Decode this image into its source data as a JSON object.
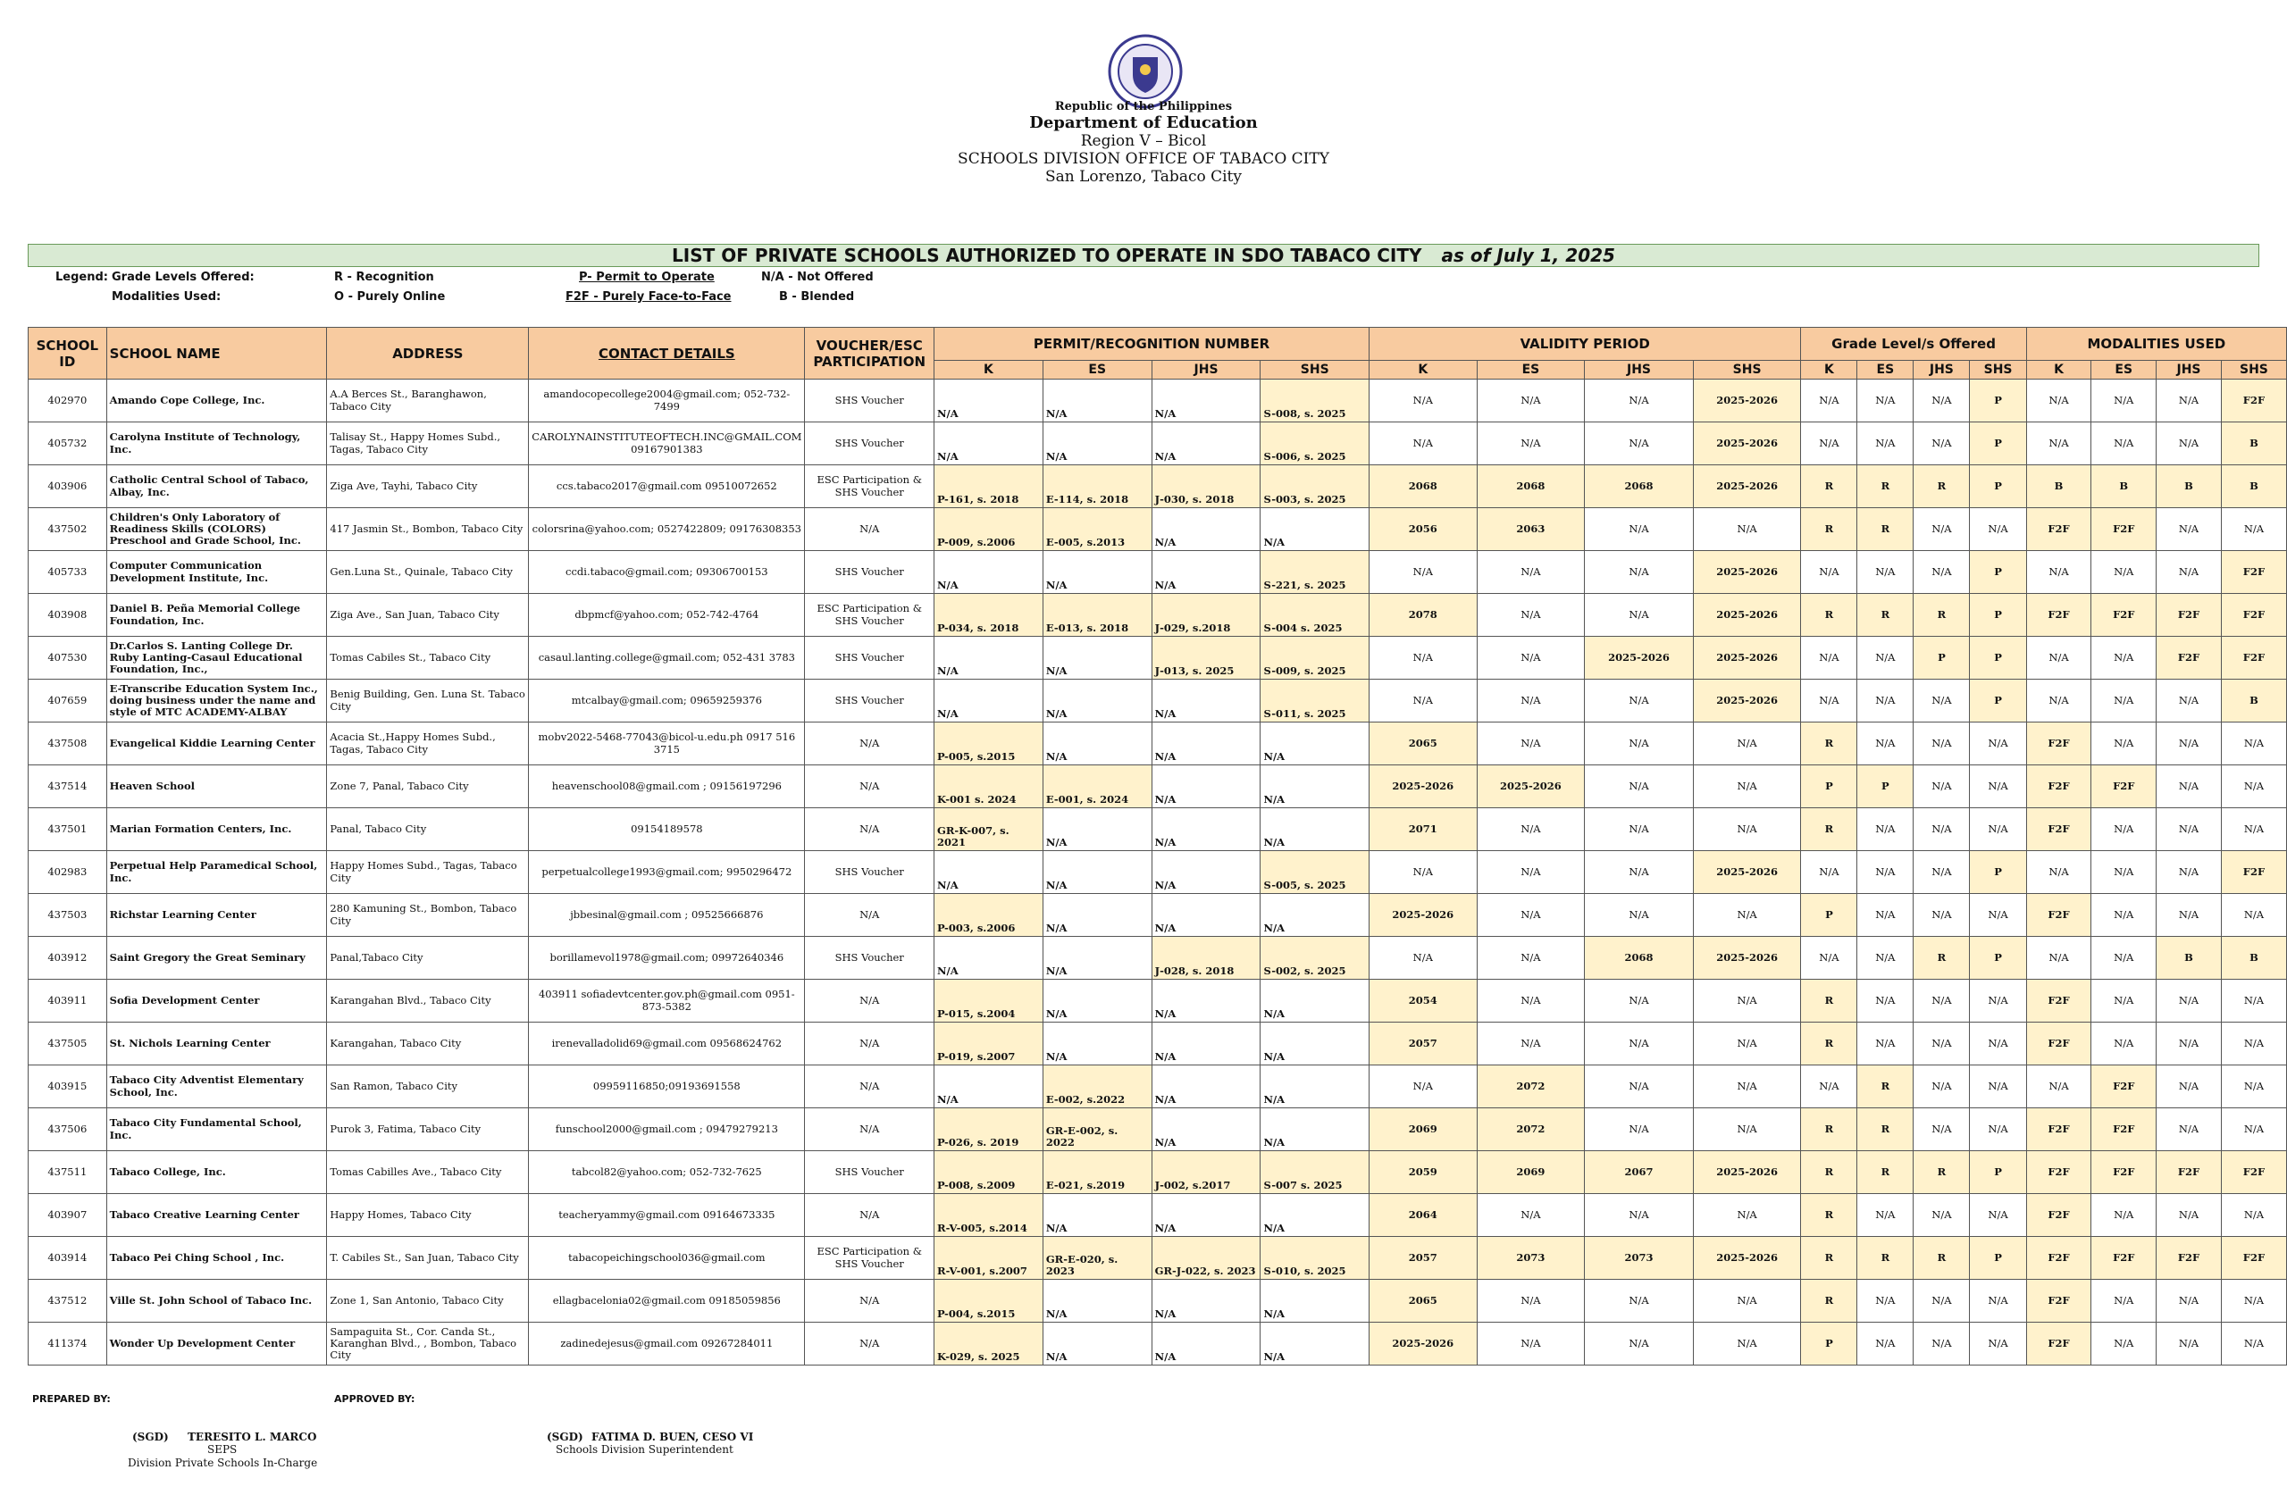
{
  "header": {
    "republic": "Republic of the Philippines",
    "department": "Department of Education",
    "region": "Region V – Bicol",
    "division": "SCHOOLS DIVISION OFFICE OF TABACO CITY",
    "address": "San Lorenzo, Tabaco City"
  },
  "title": {
    "main": "LIST OF PRIVATE SCHOOLS AUTHORIZED TO OPERATE IN SDO TABACO CITY",
    "date": "as of July 1, 2025"
  },
  "legend": {
    "label": "Legend:",
    "grade_label": "Grade Levels Offered:",
    "modality_label": "Modalities Used:",
    "items": [
      [
        "R - Recognition",
        "P- Permit to Operate",
        "N/A - Not Offered"
      ],
      [
        "O - Purely Online",
        "F2F - Purely Face-to-Face",
        "B - Blended"
      ]
    ]
  },
  "table": {
    "headers": [
      "SCHOOL ID",
      "SCHOOL NAME",
      "ADDRESS",
      "CONTACT DETAILS",
      "VOUCHER/ESC PARTICIPATION"
    ],
    "groups": [
      "PERMIT/RECOGNITION NUMBER",
      "VALIDITY PERIOD",
      "Grade Level/s Offered",
      "MODALITIES USED"
    ],
    "sub_headers": [
      "K",
      "ES",
      "JHS",
      "SHS"
    ],
    "rows": [
      [
        "402970",
        "Amando Cope College, Inc.",
        "A.A Berces St., Baranghawon, Tabaco City",
        "amandocopecollege2004@gmail.com; 052-732-7499",
        "SHS Voucher",
        "N/A",
        "N/A",
        "N/A",
        "S-008, s. 2025",
        "N/A",
        "N/A",
        "N/A",
        "2025-2026",
        "N/A",
        "N/A",
        "N/A",
        "P",
        "N/A",
        "N/A",
        "N/A",
        "F2F"
      ],
      [
        "405732",
        "Carolyna Institute of Technology, Inc.",
        "Talisay St., Happy Homes Subd., Tagas, Tabaco City",
        "CAROLYNAINSTITUTEOFTECH.INC@GMAIL.COM 09167901383",
        "SHS Voucher",
        "N/A",
        "N/A",
        "N/A",
        "S-006, s. 2025",
        "N/A",
        "N/A",
        "N/A",
        "2025-2026",
        "N/A",
        "N/A",
        "N/A",
        "P",
        "N/A",
        "N/A",
        "N/A",
        "B"
      ],
      [
        "403906",
        "Catholic Central School of Tabaco, Albay, Inc.",
        "Ziga Ave, Tayhi, Tabaco City",
        "ccs.tabaco2017@gmail.com 09510072652",
        "ESC Participation & SHS Voucher",
        "P-161, s. 2018",
        "E-114, s. 2018",
        "J-030, s. 2018",
        "S-003, s. 2025",
        "2068",
        "2068",
        "2068",
        "2025-2026",
        "R",
        "R",
        "R",
        "P",
        "B",
        "B",
        "B",
        "B"
      ],
      [
        "437502",
        "Children's Only Laboratory of Readiness Skills (COLORS) Preschool and Grade School, Inc.",
        "417 Jasmin St., Bombon, Tabaco City",
        "colorsrina@yahoo.com; 0527422809; 09176308353",
        "N/A",
        "P-009, s.2006",
        "E-005, s.2013",
        "N/A",
        "N/A",
        "2056",
        "2063",
        "N/A",
        "N/A",
        "R",
        "R",
        "N/A",
        "N/A",
        "F2F",
        "F2F",
        "N/A",
        "N/A"
      ],
      [
        "405733",
        "Computer Communication Development Institute, Inc.",
        "Gen.Luna St., Quinale, Tabaco City",
        "ccdi.tabaco@gmail.com; 09306700153",
        "SHS Voucher",
        "N/A",
        "N/A",
        "N/A",
        "S-221, s. 2025",
        "N/A",
        "N/A",
        "N/A",
        "2025-2026",
        "N/A",
        "N/A",
        "N/A",
        "P",
        "N/A",
        "N/A",
        "N/A",
        "F2F"
      ],
      [
        "403908",
        "Daniel B. Peña Memorial College Foundation, Inc.",
        "Ziga Ave., San Juan, Tabaco City",
        "dbpmcf@yahoo.com; 052-742-4764",
        "ESC Participation & SHS Voucher",
        "P-034, s. 2018",
        "E-013, s. 2018",
        "J-029, s.2018",
        "S-004 s. 2025",
        "2078",
        "N/A",
        "N/A",
        "2025-2026",
        "R",
        "R",
        "R",
        "P",
        "F2F",
        "F2F",
        "F2F",
        "F2F"
      ],
      [
        "407530",
        "Dr.Carlos S. Lanting College Dr. Ruby Lanting-Casaul Educational Foundation, Inc.,",
        "Tomas Cabiles St., Tabaco City",
        "casaul.lanting.college@gmail.com; 052-431 3783",
        "SHS Voucher",
        "N/A",
        "N/A",
        "J-013, s. 2025",
        "S-009, s. 2025",
        "N/A",
        "N/A",
        "2025-2026",
        "2025-2026",
        "N/A",
        "N/A",
        "P",
        "P",
        "N/A",
        "N/A",
        "F2F",
        "F2F"
      ],
      [
        "407659",
        "E-Transcribe Education System Inc., doing business under the name and style of MTC ACADEMY-ALBAY",
        "Benig Building, Gen. Luna St. Tabaco City",
        "mtcalbay@gmail.com; 09659259376",
        "SHS Voucher",
        "N/A",
        "N/A",
        "N/A",
        "S-011, s. 2025",
        "N/A",
        "N/A",
        "N/A",
        "2025-2026",
        "N/A",
        "N/A",
        "N/A",
        "P",
        "N/A",
        "N/A",
        "N/A",
        "B"
      ],
      [
        "437508",
        "Evangelical Kiddie Learning Center",
        "Acacia St.,Happy Homes Subd., Tagas, Tabaco City",
        "mobv2022-5468-77043@bicol-u.edu.ph 0917 516 3715",
        "N/A",
        "P-005, s.2015",
        "N/A",
        "N/A",
        "N/A",
        "2065",
        "N/A",
        "N/A",
        "N/A",
        "R",
        "N/A",
        "N/A",
        "N/A",
        "F2F",
        "N/A",
        "N/A",
        "N/A"
      ],
      [
        "437514",
        "Heaven School",
        "Zone 7, Panal, Tabaco City",
        "heavenschool08@gmail.com ; 09156197296",
        "N/A",
        "K-001 s. 2024",
        "E-001, s. 2024",
        "N/A",
        "N/A",
        "2025-2026",
        "2025-2026",
        "N/A",
        "N/A",
        "P",
        "P",
        "N/A",
        "N/A",
        "F2F",
        "F2F",
        "N/A",
        "N/A"
      ],
      [
        "437501",
        "Marian Formation Centers, Inc.",
        "Panal, Tabaco City",
        "09154189578",
        "N/A",
        "GR-K-007, s. 2021",
        "N/A",
        "N/A",
        "N/A",
        "2071",
        "N/A",
        "N/A",
        "N/A",
        "R",
        "N/A",
        "N/A",
        "N/A",
        "F2F",
        "N/A",
        "N/A",
        "N/A"
      ],
      [
        "402983",
        "Perpetual Help Paramedical School, Inc.",
        "Happy Homes Subd., Tagas, Tabaco City",
        "perpetualcollege1993@gmail.com; 9950296472",
        "SHS Voucher",
        "N/A",
        "N/A",
        "N/A",
        "S-005, s. 2025",
        "N/A",
        "N/A",
        "N/A",
        "2025-2026",
        "N/A",
        "N/A",
        "N/A",
        "P",
        "N/A",
        "N/A",
        "N/A",
        "F2F"
      ],
      [
        "437503",
        "Richstar Learning Center",
        "280 Kamuning St., Bombon, Tabaco City",
        "jbbesinal@gmail.com ; 09525666876",
        "N/A",
        "P-003, s.2006",
        "N/A",
        "N/A",
        "N/A",
        "2025-2026",
        "N/A",
        "N/A",
        "N/A",
        "P",
        "N/A",
        "N/A",
        "N/A",
        "F2F",
        "N/A",
        "N/A",
        "N/A"
      ],
      [
        "403912",
        "Saint Gregory the Great Seminary",
        "Panal,Tabaco City",
        "borillamevol1978@gmail.com; 09972640346",
        "SHS Voucher",
        "N/A",
        "N/A",
        "J-028, s. 2018",
        "S-002, s. 2025",
        "N/A",
        "N/A",
        "2068",
        "2025-2026",
        "N/A",
        "N/A",
        "R",
        "P",
        "N/A",
        "N/A",
        "B",
        "B"
      ],
      [
        "403911",
        "Sofia Development Center",
        "Karangahan Blvd., Tabaco City",
        "403911 sofiadevtcenter.gov.ph@gmail.com 0951-873-5382",
        "N/A",
        "P-015, s.2004",
        "N/A",
        "N/A",
        "N/A",
        "2054",
        "N/A",
        "N/A",
        "N/A",
        "R",
        "N/A",
        "N/A",
        "N/A",
        "F2F",
        "N/A",
        "N/A",
        "N/A"
      ],
      [
        "437505",
        "St. Nichols Learning Center",
        "Karangahan, Tabaco City",
        "irenevalladolid69@gmail.com 09568624762",
        "N/A",
        "P-019, s.2007",
        "N/A",
        "N/A",
        "N/A",
        "2057",
        "N/A",
        "N/A",
        "N/A",
        "R",
        "N/A",
        "N/A",
        "N/A",
        "F2F",
        "N/A",
        "N/A",
        "N/A"
      ],
      [
        "403915",
        "Tabaco City Adventist Elementary School, Inc.",
        "San Ramon, Tabaco City",
        "09959116850;09193691558",
        "N/A",
        "N/A",
        "E-002, s.2022",
        "N/A",
        "N/A",
        "N/A",
        "2072",
        "N/A",
        "N/A",
        "N/A",
        "R",
        "N/A",
        "N/A",
        "N/A",
        "F2F",
        "N/A",
        "N/A"
      ],
      [
        "437506",
        "Tabaco City Fundamental School, Inc.",
        "Purok 3, Fatima, Tabaco City",
        "funschool2000@gmail.com ; 09479279213",
        "N/A",
        "P-026, s. 2019",
        "GR-E-002, s. 2022",
        "N/A",
        "N/A",
        "2069",
        "2072",
        "N/A",
        "N/A",
        "R",
        "R",
        "N/A",
        "N/A",
        "F2F",
        "F2F",
        "N/A",
        "N/A"
      ],
      [
        "437511",
        "Tabaco College, Inc.",
        "Tomas Cabilles Ave., Tabaco City",
        "tabcol82@yahoo.com; 052-732-7625",
        "SHS Voucher",
        "P-008, s.2009",
        "E-021, s.2019",
        "J-002, s.2017",
        "S-007 s. 2025",
        "2059",
        "2069",
        "2067",
        "2025-2026",
        "R",
        "R",
        "R",
        "P",
        "F2F",
        "F2F",
        "F2F",
        "F2F"
      ],
      [
        "403907",
        "Tabaco Creative Learning Center",
        "Happy Homes, Tabaco City",
        "teacheryammy@gmail.com 09164673335",
        "N/A",
        "R-V-005, s.2014",
        "N/A",
        "N/A",
        "N/A",
        "2064",
        "N/A",
        "N/A",
        "N/A",
        "R",
        "N/A",
        "N/A",
        "N/A",
        "F2F",
        "N/A",
        "N/A",
        "N/A"
      ],
      [
        "403914",
        "Tabaco Pei Ching School , Inc.",
        "T. Cabiles St., San Juan, Tabaco City",
        "tabacopeichingschool036@gmail.com",
        "ESC Participation & SHS Voucher",
        "R-V-001, s.2007",
        "GR-E-020, s. 2023",
        "GR-J-022, s. 2023",
        "S-010, s. 2025",
        "2057",
        "2073",
        "2073",
        "2025-2026",
        "R",
        "R",
        "R",
        "P",
        "F2F",
        "F2F",
        "F2F",
        "F2F"
      ],
      [
        "437512",
        "Ville St. John School of Tabaco Inc.",
        "Zone 1, San Antonio, Tabaco City",
        "ellagbacelonia02@gmail.com 09185059856",
        "N/A",
        "P-004, s.2015",
        "N/A",
        "N/A",
        "N/A",
        "2065",
        "N/A",
        "N/A",
        "N/A",
        "R",
        "N/A",
        "N/A",
        "N/A",
        "F2F",
        "N/A",
        "N/A",
        "N/A"
      ],
      [
        "411374",
        "Wonder Up Development Center",
        "Sampaguita St., Cor. Canda St., Karanghan Blvd., , Bombon, Tabaco City",
        "zadinedejesus@gmail.com 09267284011",
        "N/A",
        "K-029, s. 2025",
        "N/A",
        "N/A",
        "N/A",
        "2025-2026",
        "N/A",
        "N/A",
        "N/A",
        "P",
        "N/A",
        "N/A",
        "N/A",
        "F2F",
        "N/A",
        "N/A",
        "N/A"
      ]
    ]
  },
  "footer": {
    "prepared_label": "PREPARED BY:",
    "approved_label": "APPROVED BY:",
    "prepared": {
      "sgd": "(SGD)",
      "name": "TERESITO L. MARCO",
      "position": "SEPS",
      "role": "Division Private Schools In-Charge"
    },
    "approved": {
      "sgd": "(SGD)",
      "name": "FATIMA D. BUEN, CESO VI",
      "role": "Schools Division Superintendent"
    }
  }
}
